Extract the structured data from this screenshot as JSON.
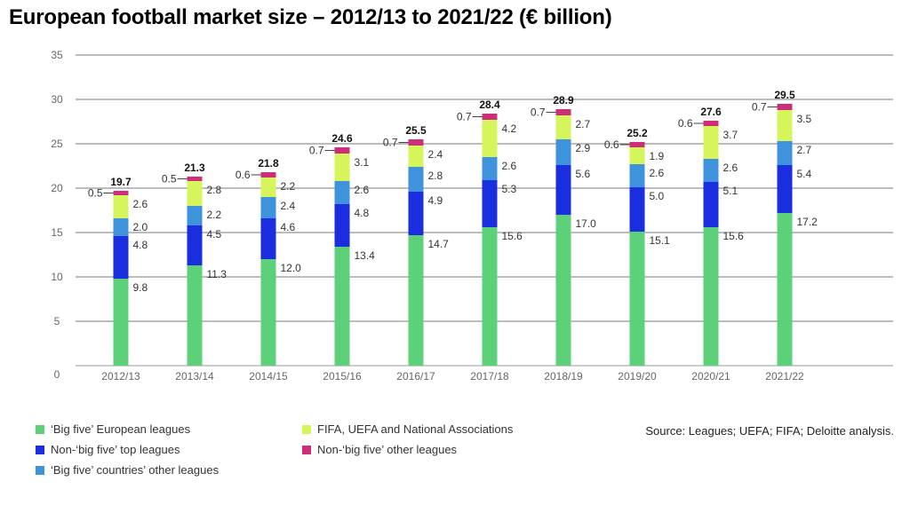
{
  "title": "European football market size – 2012/13 to 2021/22 (€ billion)",
  "source": "Source: Leagues; UEFA; FIFA; Deloitte analysis.",
  "legend": [
    {
      "label": "‘Big five’ European leagues",
      "color": "#5cd17a"
    },
    {
      "label": "FIFA, UEFA and National Associations",
      "color": "#d6f55a"
    },
    {
      "label": "Non-‘big five’ top leagues",
      "color": "#1a2ee0"
    },
    {
      "label": "Non-‘big five’ other leagues",
      "color": "#cc2f78"
    },
    {
      "label": "‘Big five’ countries’ other leagues",
      "color": "#3f93dc"
    }
  ],
  "chart_data": {
    "type": "bar",
    "stacked": true,
    "categories": [
      "2012/13",
      "2013/14",
      "2014/15",
      "2015/16",
      "2016/17",
      "2017/18",
      "2018/19",
      "2019/20",
      "2020/21",
      "2021/22"
    ],
    "yticks": [
      "0",
      "5",
      "10",
      "15",
      "20",
      "25",
      "30",
      "35"
    ],
    "ylim": [
      0,
      35
    ],
    "grid": true,
    "totals": [
      "19.7",
      "21.3",
      "21.8",
      "24.6",
      "25.5",
      "28.4",
      "28.9",
      "25.2",
      "27.6",
      "29.5"
    ],
    "series": [
      {
        "name": "‘Big five’ European leagues",
        "color": "#5cd17a",
        "values": [
          9.8,
          11.3,
          12.0,
          13.4,
          14.7,
          15.6,
          17.0,
          15.1,
          15.6,
          17.2
        ],
        "labels": [
          "9.8",
          "11.3",
          "12.0",
          "13.4",
          "14.7",
          "15.6",
          "17.0",
          "15.1",
          "15.6",
          "17.2"
        ]
      },
      {
        "name": "Non-‘big five’ top leagues",
        "color": "#1a2ee0",
        "values": [
          4.8,
          4.5,
          4.6,
          4.8,
          4.9,
          5.3,
          5.6,
          5.0,
          5.1,
          5.4
        ],
        "labels": [
          "4.8",
          "4.5",
          "4.6",
          "4.8",
          "4.9",
          "5.3",
          "5.6",
          "5.0",
          "5.1",
          "5.4"
        ]
      },
      {
        "name": "‘Big five’ countries’ other leagues",
        "color": "#3f93dc",
        "values": [
          2.0,
          2.2,
          2.4,
          2.6,
          2.8,
          2.6,
          2.9,
          2.6,
          2.6,
          2.7
        ],
        "labels": [
          "2.0",
          "2.2",
          "2.4",
          "2.6",
          "2.8",
          "2.6",
          "2.9",
          "2.6",
          "2.6",
          "2.7"
        ]
      },
      {
        "name": "FIFA, UEFA and National Associations",
        "color": "#d6f55a",
        "values": [
          2.6,
          2.8,
          2.2,
          3.1,
          2.4,
          4.2,
          2.7,
          1.9,
          3.7,
          3.5
        ],
        "labels": [
          "2.6",
          "2.8",
          "2.2",
          "3.1",
          "2.4",
          "4.2",
          "2.7",
          "1.9",
          "3.7",
          "3.5"
        ]
      },
      {
        "name": "Non-‘big five’ other leagues",
        "color": "#cc2f78",
        "values": [
          0.5,
          0.5,
          0.6,
          0.7,
          0.7,
          0.7,
          0.7,
          0.6,
          0.6,
          0.7
        ],
        "labels": [
          "0.5",
          "0.5",
          "0.6",
          "0.7",
          "0.7",
          "0.7",
          "0.7",
          "0.6",
          "0.6",
          "0.7"
        ]
      }
    ]
  }
}
